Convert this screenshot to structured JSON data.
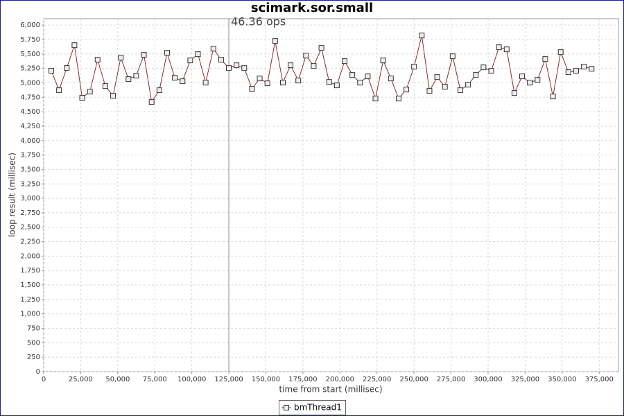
{
  "chart_data": {
    "type": "line",
    "title": "scimark.sor.small",
    "x_label": "time from start (millisec)",
    "y_label": "loop result (millisec)",
    "x": [
      5150,
      10360,
      15570,
      20780,
      25990,
      31200,
      36410,
      41620,
      46830,
      52040,
      57250,
      62460,
      67670,
      72880,
      78090,
      83300,
      88510,
      93720,
      98930,
      104140,
      109350,
      114560,
      119770,
      124980,
      130190,
      135400,
      140610,
      145820,
      151030,
      156240,
      161450,
      166660,
      171870,
      177080,
      182290,
      187500,
      192710,
      197920,
      203130,
      208340,
      213550,
      218760,
      223970,
      229180,
      234390,
      239600,
      244810,
      250020,
      255230,
      260440,
      265650,
      270860,
      276070,
      281280,
      286490,
      291700,
      296910,
      302120,
      307330,
      312540,
      317750,
      322960,
      328170,
      333380,
      338590,
      343800,
      349010,
      354220,
      359430,
      364640,
      369850
    ],
    "series": [
      {
        "name": "bmThread1",
        "color": "#8b2b2b",
        "values": [
          5208,
          4872,
          5256,
          5652,
          4740,
          4848,
          5400,
          4944,
          4776,
          5436,
          5064,
          5124,
          5484,
          4668,
          4872,
          5520,
          5088,
          5028,
          5388,
          5496,
          5004,
          5592,
          5400,
          5256,
          5304,
          5256,
          4896,
          5076,
          4992,
          5724,
          5004,
          5304,
          5040,
          5472,
          5292,
          5604,
          5016,
          4956,
          5376,
          5136,
          5004,
          5112,
          4728,
          5388,
          5076,
          4728,
          4884,
          5280,
          5820,
          4860,
          5100,
          4932,
          5460,
          4872,
          4968,
          5136,
          5268,
          5208,
          5616,
          5580,
          4824,
          5112,
          5004,
          5052,
          5412,
          4764,
          5532,
          5184,
          5208,
          5280,
          5244
        ]
      }
    ],
    "markers": [
      {
        "x": 125000,
        "label": "46.36 ops"
      }
    ],
    "xlim": [
      0,
      388000
    ],
    "ylim": [
      0,
      6110
    ],
    "xticks": [
      0,
      {
        "value": 25000,
        "label": "25,000"
      },
      {
        "value": 50000,
        "label": "50,000"
      },
      {
        "value": 75000,
        "label": "75,000"
      },
      {
        "value": 100000,
        "label": "100,000"
      },
      {
        "value": 125000,
        "label": "125,000"
      },
      {
        "value": 150000,
        "label": "150,000"
      },
      {
        "value": 175000,
        "label": "175,000"
      },
      {
        "value": 200000,
        "label": "200,000"
      },
      {
        "value": 225000,
        "label": "225,000"
      },
      {
        "value": 250000,
        "label": "250,000"
      },
      {
        "value": 275000,
        "label": "275,000"
      },
      {
        "value": 300000,
        "label": "300,000"
      },
      {
        "value": 325000,
        "label": "325,000"
      },
      {
        "value": 350000,
        "label": "350,000"
      },
      {
        "value": 375000,
        "label": "375,000"
      }
    ],
    "yticks": [
      0,
      250,
      500,
      750,
      {
        "value": 1000,
        "label": "1,000"
      },
      {
        "value": 1250,
        "label": "1,250"
      },
      {
        "value": 1500,
        "label": "1,500"
      },
      {
        "value": 1750,
        "label": "1,750"
      },
      {
        "value": 2000,
        "label": "2,000"
      },
      {
        "value": 2250,
        "label": "2,250"
      },
      {
        "value": 2500,
        "label": "2,500"
      },
      {
        "value": 2750,
        "label": "2,750"
      },
      {
        "value": 3000,
        "label": "3,000"
      },
      {
        "value": 3250,
        "label": "3,250"
      },
      {
        "value": 3500,
        "label": "3,500"
      },
      {
        "value": 3750,
        "label": "3,750"
      },
      {
        "value": 4000,
        "label": "4,000"
      },
      {
        "value": 4250,
        "label": "4,250"
      },
      {
        "value": 4500,
        "label": "4,500"
      },
      {
        "value": 4750,
        "label": "4,750"
      },
      {
        "value": 5000,
        "label": "5,000"
      },
      {
        "value": 5250,
        "label": "5,250"
      },
      {
        "value": 5500,
        "label": "5,500"
      },
      {
        "value": 5750,
        "label": "5,750"
      },
      {
        "value": 6000,
        "label": "6,000"
      }
    ],
    "grid": true,
    "legend": "bottom"
  }
}
